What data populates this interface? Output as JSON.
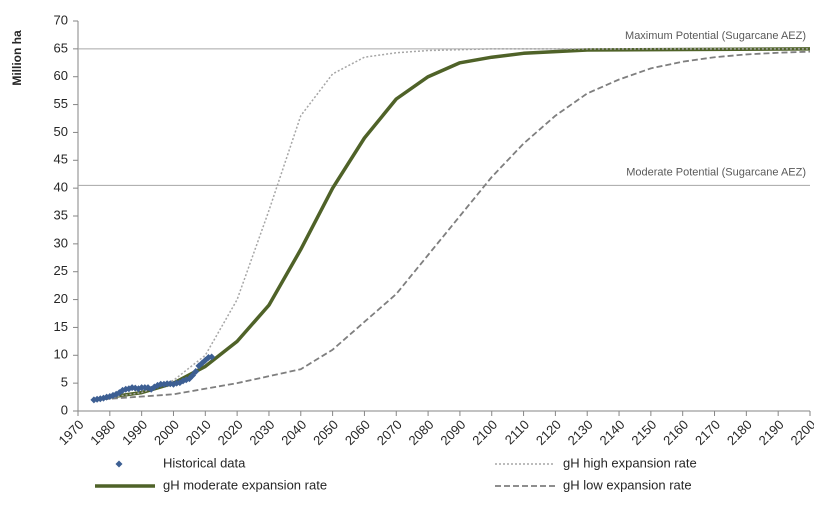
{
  "chart_data": {
    "type": "line",
    "y_label": "Million ha",
    "xlim": [
      1970,
      2200
    ],
    "xticks": [
      1970,
      1980,
      1990,
      2000,
      2010,
      2020,
      2030,
      2040,
      2050,
      2060,
      2070,
      2080,
      2090,
      2100,
      2110,
      2120,
      2130,
      2140,
      2150,
      2160,
      2170,
      2180,
      2190,
      2200
    ],
    "ylim": [
      0,
      70
    ],
    "yticks": [
      0,
      5,
      10,
      15,
      20,
      25,
      30,
      35,
      40,
      45,
      50,
      55,
      60,
      65,
      70
    ],
    "grid": false,
    "reference_lines": [
      {
        "value": 65,
        "label": "Maximum Potential (Sugarcane AEZ)",
        "color": "#a6a6a6"
      },
      {
        "value": 40.5,
        "label": "Moderate Potential (Sugarcane AEZ)",
        "color": "#a6a6a6"
      }
    ],
    "series": [
      {
        "name": "Historical data",
        "type": "scatter",
        "color": "#3d5f93",
        "x": [
          1975,
          1976,
          1977,
          1978,
          1979,
          1980,
          1981,
          1982,
          1983,
          1984,
          1985,
          1986,
          1987,
          1988,
          1989,
          1990,
          1991,
          1992,
          1993,
          1994,
          1995,
          1996,
          1997,
          1998,
          1999,
          2000,
          2001,
          2002,
          2003,
          2004,
          2005,
          2006,
          2007,
          2008,
          2009,
          2010,
          2011,
          2012
        ],
        "values": [
          2.0,
          2.1,
          2.2,
          2.3,
          2.5,
          2.6,
          2.8,
          3.0,
          3.3,
          3.7,
          3.9,
          4.0,
          4.2,
          4.1,
          4.0,
          4.2,
          4.2,
          4.2,
          3.9,
          4.3,
          4.6,
          4.8,
          4.8,
          4.9,
          4.9,
          4.8,
          5.0,
          5.1,
          5.4,
          5.6,
          5.8,
          6.4,
          7.1,
          8.1,
          8.6,
          9.1,
          9.6,
          9.7
        ]
      },
      {
        "name": "gH high expansion rate",
        "type": "line",
        "dash": "dotted",
        "color": "#a6a6a6",
        "x": [
          1975,
          1990,
          2000,
          2010,
          2020,
          2030,
          2040,
          2050,
          2060,
          2070,
          2080,
          2100,
          2200
        ],
        "values": [
          2,
          3.3,
          5.5,
          10,
          20,
          36,
          53,
          60.5,
          63.5,
          64.3,
          64.7,
          65,
          65
        ]
      },
      {
        "name": "gH moderate expansion rate",
        "type": "line",
        "dash": "solid",
        "color": "#4f6228",
        "x": [
          1975,
          1980,
          1990,
          2000,
          2010,
          2020,
          2030,
          2040,
          2050,
          2060,
          2070,
          2080,
          2090,
          2100,
          2110,
          2120,
          2130,
          2200
        ],
        "values": [
          2,
          2.5,
          3.3,
          5,
          8,
          12.5,
          19,
          29,
          40,
          49,
          56,
          60,
          62.5,
          63.5,
          64.2,
          64.5,
          64.8,
          65
        ]
      },
      {
        "name": "gH low expansion rate",
        "type": "line",
        "dash": "dashed",
        "color": "#7f7f7f",
        "x": [
          1975,
          2000,
          2020,
          2040,
          2050,
          2060,
          2070,
          2080,
          2090,
          2100,
          2110,
          2120,
          2130,
          2140,
          2150,
          2160,
          2170,
          2180,
          2190,
          2200
        ],
        "values": [
          2,
          3,
          5,
          7.5,
          11,
          16,
          21,
          28,
          35,
          42,
          48,
          53,
          57,
          59.5,
          61.5,
          62.7,
          63.5,
          64,
          64.3,
          64.5
        ]
      }
    ]
  }
}
